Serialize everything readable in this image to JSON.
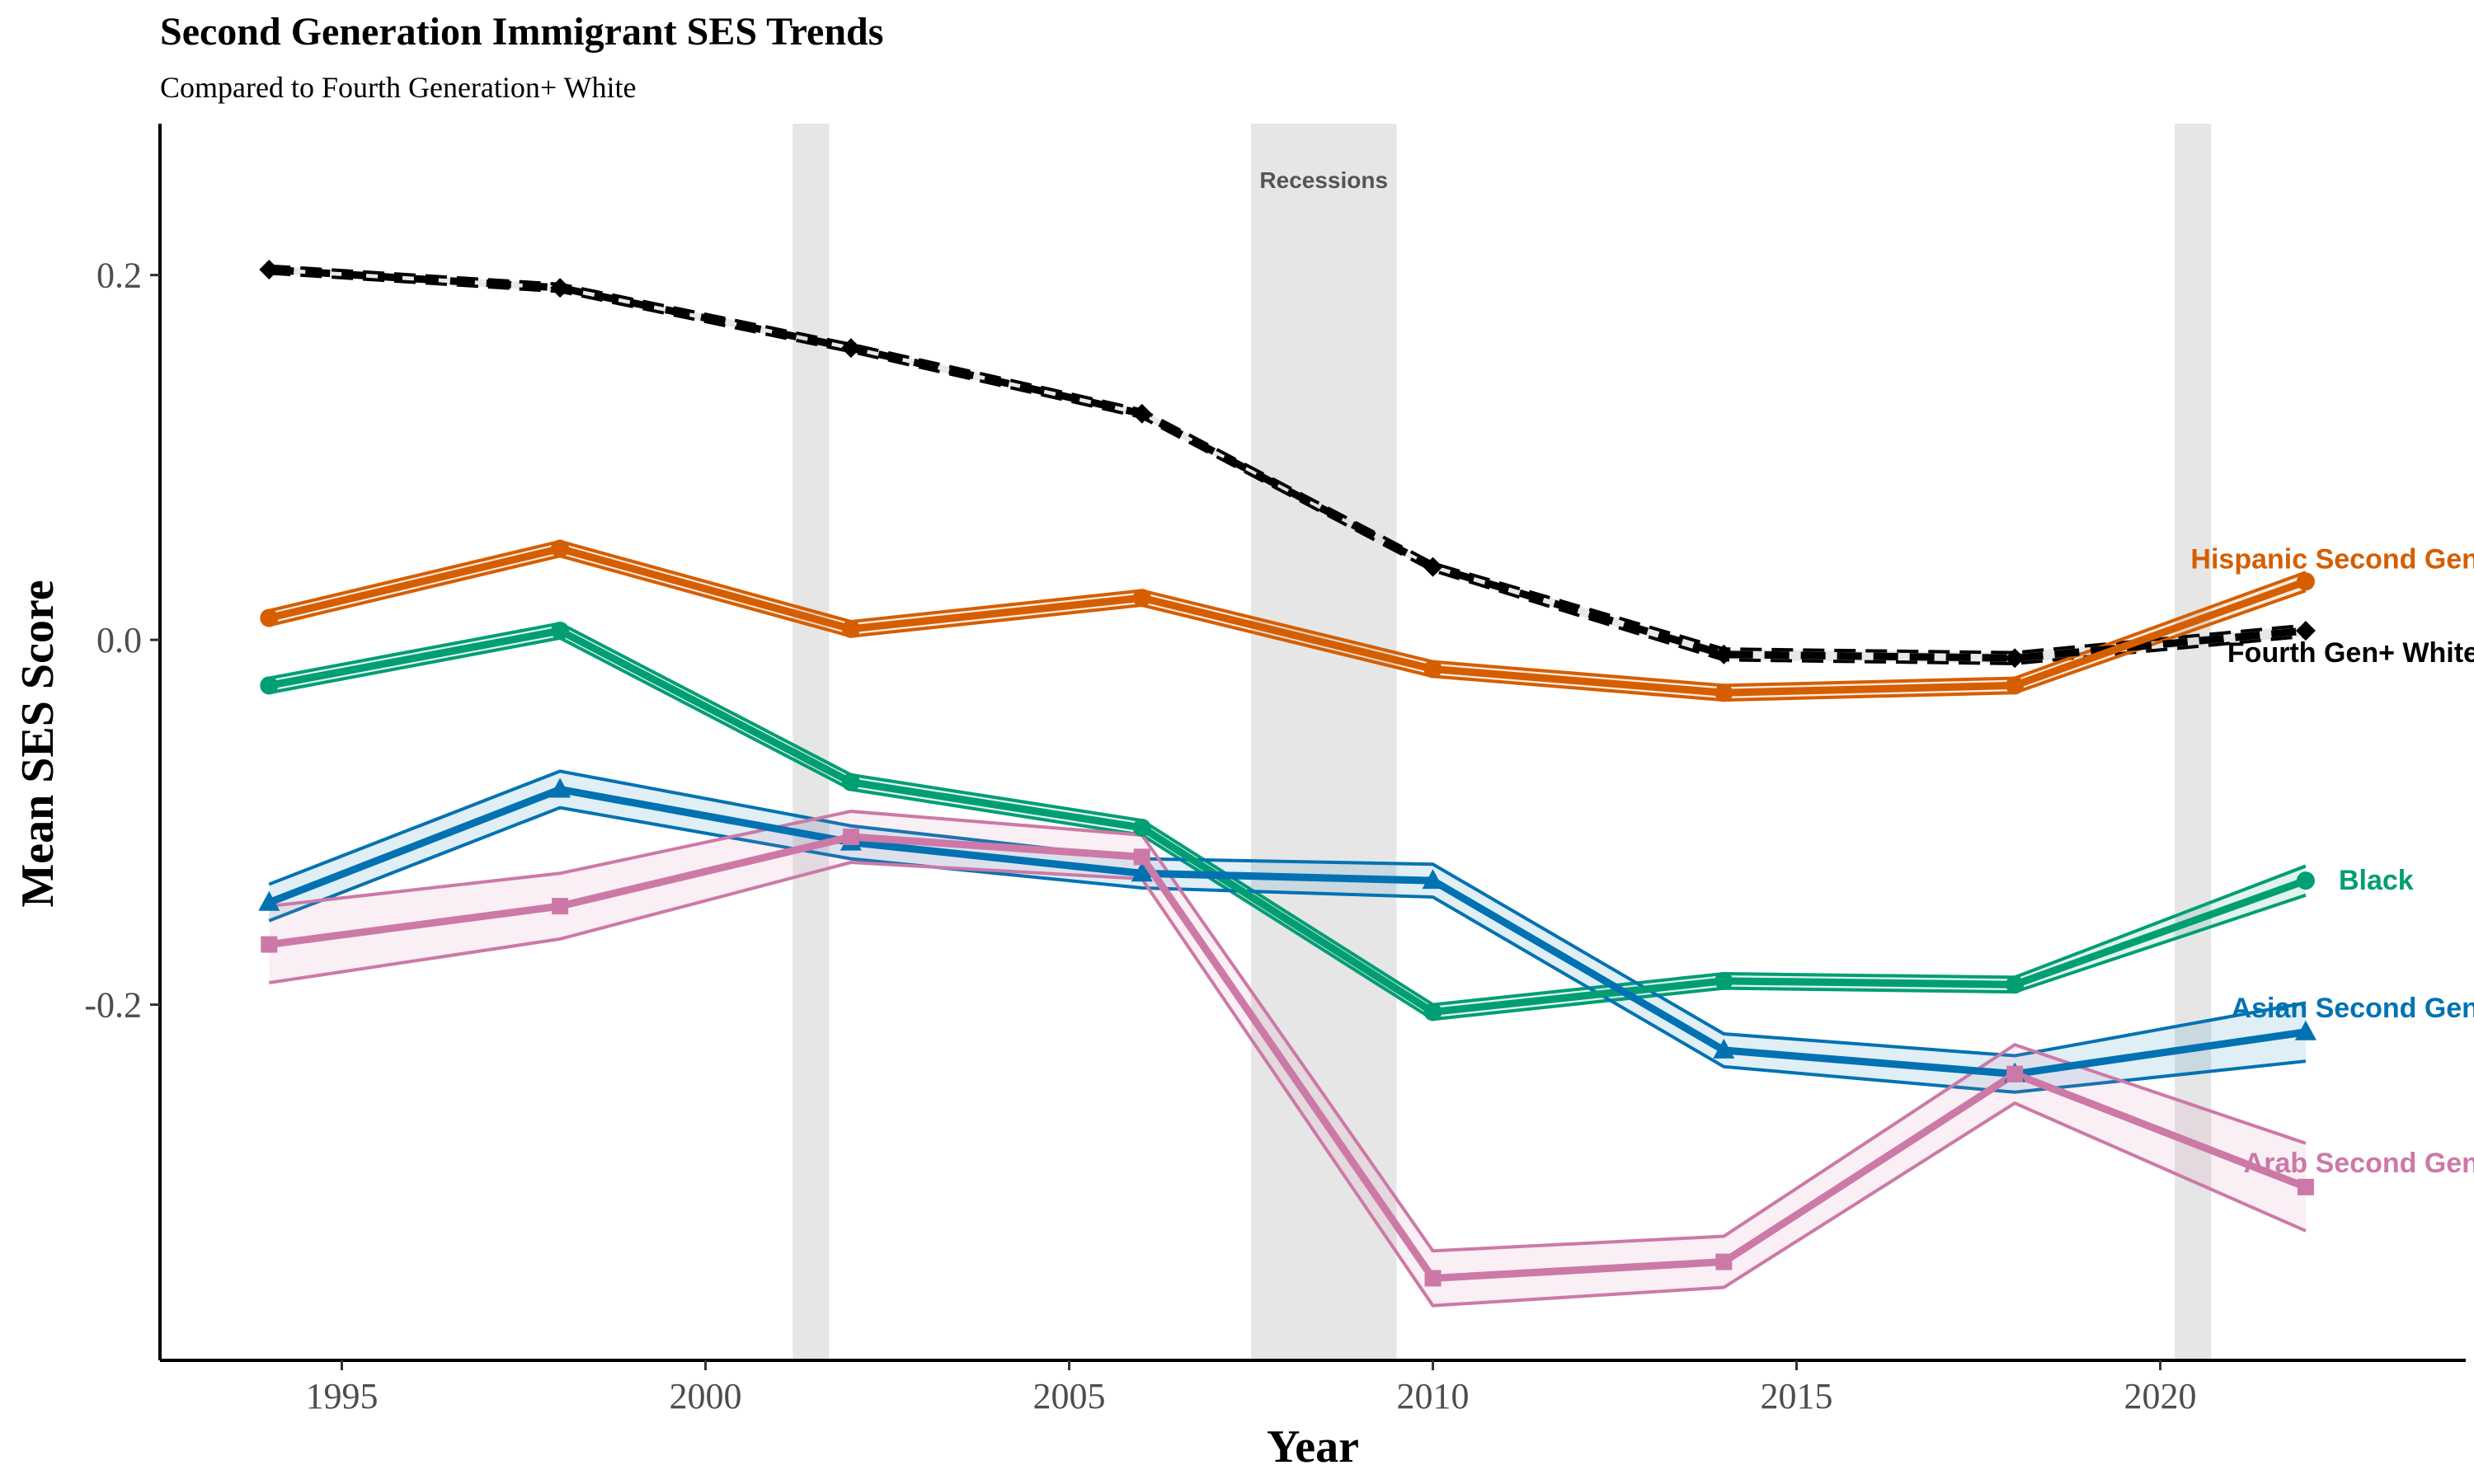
{
  "chart_data": {
    "type": "line",
    "title": "Second Generation Immigrant SES Trends",
    "subtitle": "Compared to Fourth Generation+ White",
    "xlabel": "Year",
    "ylabel": "Mean SES Score",
    "xlim": [
      1992.5,
      2024.2
    ],
    "ylim": [
      -0.395,
      0.283
    ],
    "xticks": [
      1995,
      2000,
      2005,
      2010,
      2015,
      2020
    ],
    "xtick_labels": [
      "1995",
      "2000",
      "2005",
      "2010",
      "2015",
      "2020"
    ],
    "yticks": [
      -0.2,
      0.0,
      0.2
    ],
    "ytick_labels": [
      "-0.2",
      "0.0",
      "0.2"
    ],
    "grid": false,
    "legend": "none (direct labels at line ends)",
    "recession_label": "Recessions",
    "recessions": [
      {
        "start": 2001.2,
        "end": 2001.7
      },
      {
        "start": 2007.5,
        "end": 2009.5
      },
      {
        "start": 2020.2,
        "end": 2020.7
      }
    ],
    "x": [
      1994,
      1998,
      2002,
      2006,
      2010,
      2014,
      2018,
      2022
    ],
    "series": [
      {
        "name": "Fourth Gen+ White",
        "label_text": "Fourth Gen+ White",
        "color": "#000000",
        "marker": "diamond",
        "style": "dashed",
        "values": [
          0.203,
          0.193,
          0.16,
          0.124,
          0.04,
          -0.008,
          -0.01,
          0.005
        ],
        "lower": [
          0.201,
          0.191,
          0.158,
          0.122,
          0.038,
          -0.011,
          -0.013,
          0.002
        ],
        "upper": [
          0.205,
          0.195,
          0.162,
          0.126,
          0.042,
          -0.005,
          -0.007,
          0.008
        ]
      },
      {
        "name": "Hispanic Second Gen",
        "label_text": "Hispanic Second Gen",
        "color": "#D55E00",
        "marker": "circle",
        "style": "solid",
        "values": [
          0.012,
          0.05,
          0.006,
          0.023,
          -0.016,
          -0.029,
          -0.025,
          0.032
        ],
        "lower": [
          0.008,
          0.046,
          0.002,
          0.019,
          -0.02,
          -0.033,
          -0.029,
          0.027
        ],
        "upper": [
          0.016,
          0.054,
          0.01,
          0.027,
          -0.012,
          -0.025,
          -0.021,
          0.037
        ]
      },
      {
        "name": "Black",
        "label_text": "Black",
        "color": "#009E73",
        "marker": "circle",
        "style": "solid",
        "values": [
          -0.025,
          0.005,
          -0.078,
          -0.103,
          -0.204,
          -0.187,
          -0.189,
          -0.132
        ],
        "lower": [
          -0.029,
          0.001,
          -0.082,
          -0.107,
          -0.208,
          -0.191,
          -0.193,
          -0.14
        ],
        "upper": [
          -0.021,
          0.009,
          -0.074,
          -0.099,
          -0.2,
          -0.183,
          -0.185,
          -0.124
        ]
      },
      {
        "name": "Asian Second Gen",
        "label_text": "Asian Second Gen",
        "color": "#0072B2",
        "marker": "triangle",
        "style": "solid",
        "values": [
          -0.144,
          -0.082,
          -0.111,
          -0.128,
          -0.132,
          -0.225,
          -0.238,
          -0.215
        ],
        "lower": [
          -0.154,
          -0.092,
          -0.12,
          -0.136,
          -0.141,
          -0.234,
          -0.248,
          -0.231
        ],
        "upper": [
          -0.134,
          -0.072,
          -0.102,
          -0.12,
          -0.123,
          -0.216,
          -0.228,
          -0.199
        ]
      },
      {
        "name": "Arab Second Gen",
        "label_text": "Arab Second Gen",
        "color": "#CC79A7",
        "marker": "square",
        "style": "solid",
        "values": [
          -0.167,
          -0.146,
          -0.108,
          -0.119,
          -0.35,
          -0.341,
          -0.238,
          -0.3
        ],
        "lower": [
          -0.188,
          -0.164,
          -0.122,
          -0.131,
          -0.365,
          -0.355,
          -0.254,
          -0.324
        ],
        "upper": [
          -0.146,
          -0.128,
          -0.094,
          -0.107,
          -0.335,
          -0.327,
          -0.222,
          -0.276
        ]
      }
    ]
  }
}
